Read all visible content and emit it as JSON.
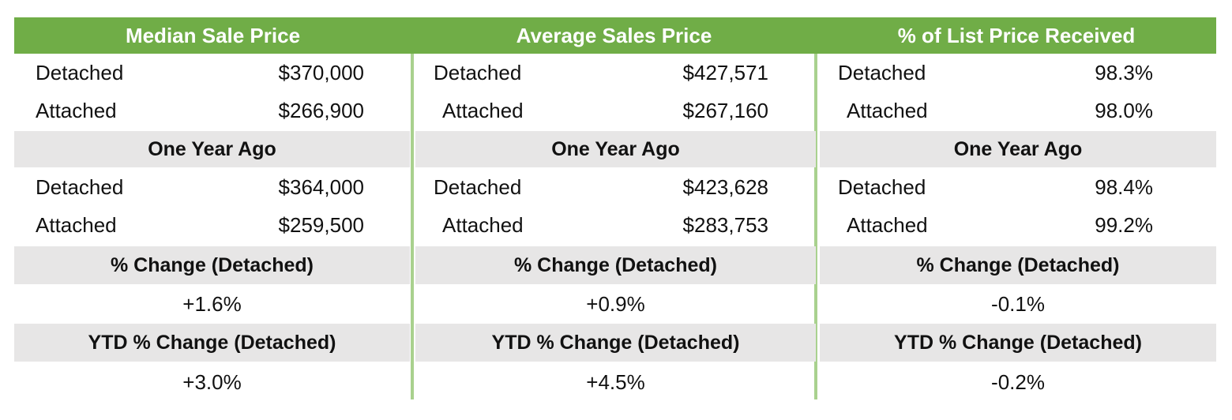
{
  "panels": [
    {
      "title": "Median Sale Price",
      "current": [
        [
          "Detached",
          "$370,000"
        ],
        [
          "Attached",
          "$266,900"
        ]
      ],
      "year_ago_title": "One Year Ago",
      "year_ago": [
        [
          "Detached",
          "$364,000"
        ],
        [
          "Attached",
          "$259,500"
        ]
      ],
      "change_title": "% Change (Detached)",
      "change": "+1.6%",
      "ytd_title": "YTD % Change (Detached)",
      "ytd": "+3.0%"
    },
    {
      "title": "Average Sales Price",
      "current": [
        [
          "Detached",
          "$427,571"
        ],
        [
          "Attached",
          "$267,160"
        ]
      ],
      "year_ago_title": "One Year Ago",
      "year_ago": [
        [
          "Detached",
          "$423,628"
        ],
        [
          "Attached",
          "$283,753"
        ]
      ],
      "change_title": "% Change (Detached)",
      "change": "+0.9%",
      "ytd_title": "YTD % Change (Detached)",
      "ytd": "+4.5%"
    },
    {
      "title": "% of List Price Received",
      "current": [
        [
          "Detached",
          "98.3%"
        ],
        [
          "Attached",
          "98.0%"
        ]
      ],
      "year_ago_title": "One Year Ago",
      "year_ago": [
        [
          "Detached",
          "98.4%"
        ],
        [
          "Attached",
          "99.2%"
        ]
      ],
      "change_title": "% Change (Detached)",
      "change": "-0.1%",
      "ytd_title": "YTD % Change (Detached)",
      "ytd": "-0.2%"
    }
  ]
}
